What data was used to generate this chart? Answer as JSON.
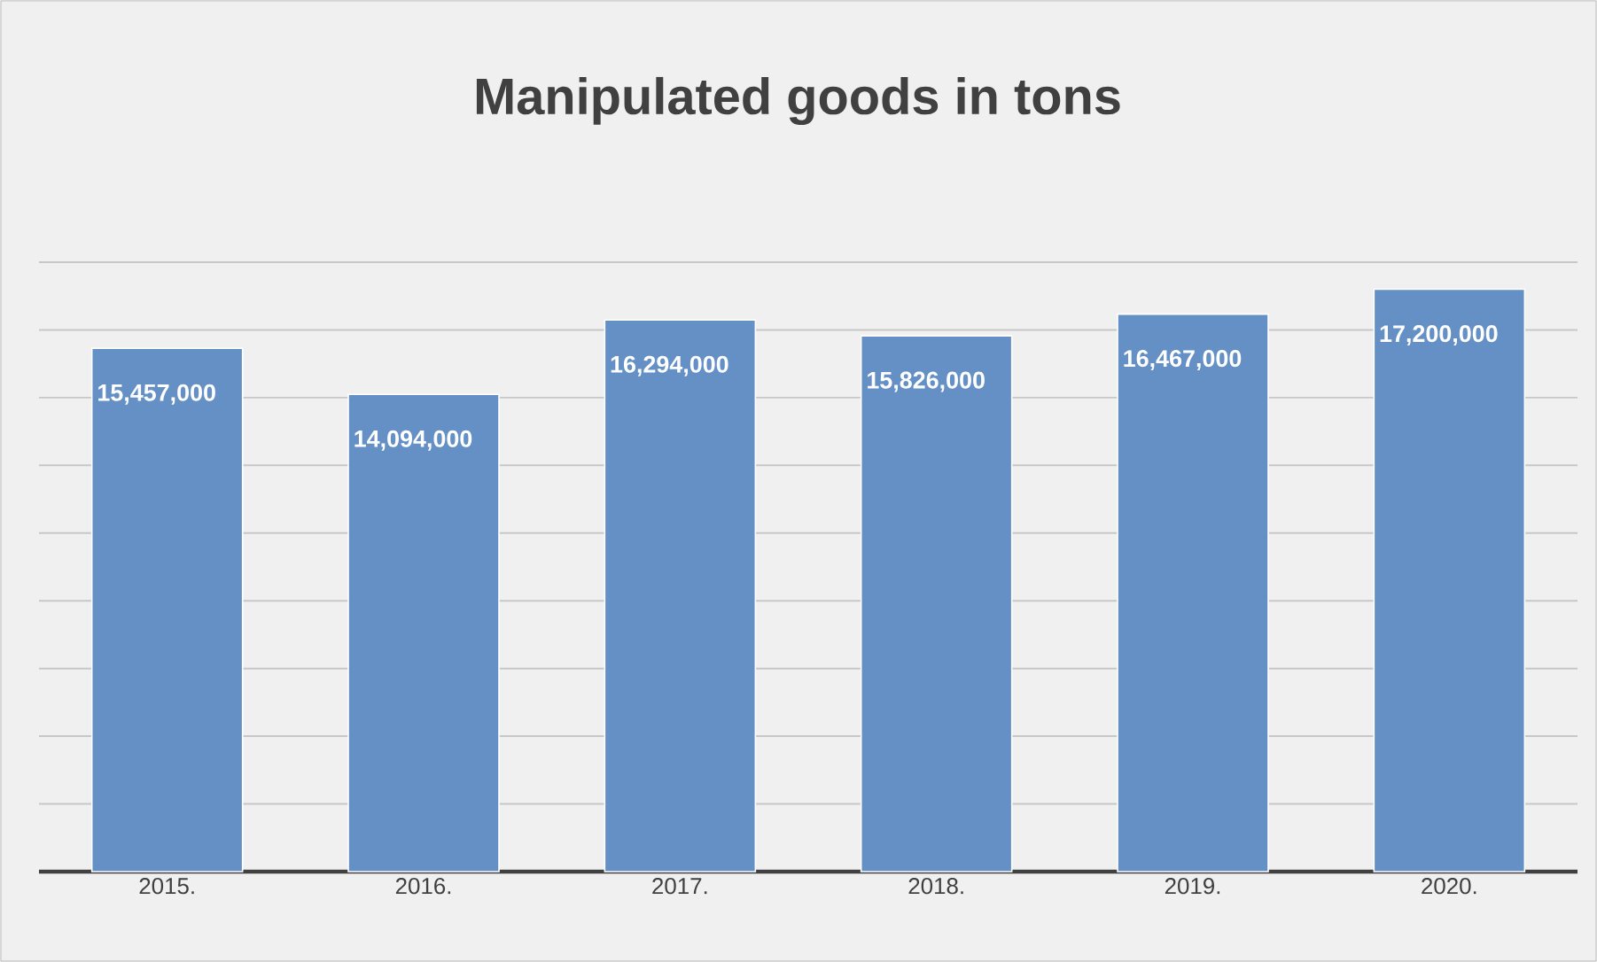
{
  "chart_data": {
    "type": "bar",
    "title": "Manipulated goods in tons",
    "categories": [
      "2015.",
      "2016.",
      "2017.",
      "2018.",
      "2019.",
      "2020."
    ],
    "values": [
      15457000,
      14094000,
      16294000,
      15826000,
      16467000,
      17200000
    ],
    "value_labels": [
      "15,457,000",
      "14,094,000",
      "16,294,000",
      "15,826,000",
      "16,467,000",
      "17,200,000"
    ],
    "color": "#6490c6",
    "grid": "y",
    "tick_labels": "x"
  }
}
